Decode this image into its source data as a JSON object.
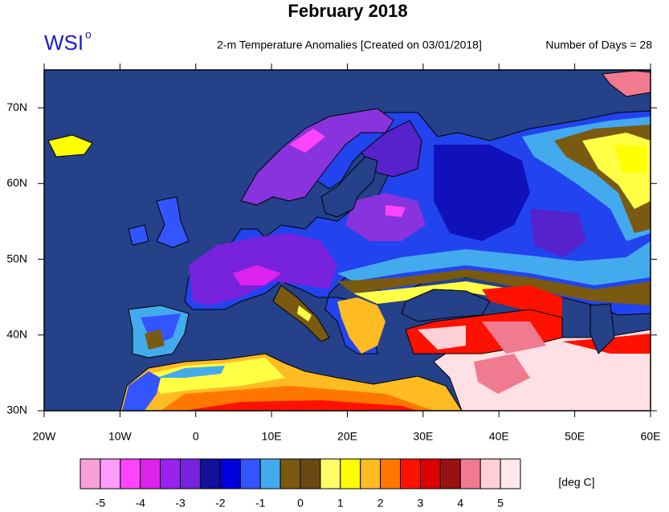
{
  "header": {
    "title": "February 2018",
    "logo": "WSI",
    "logo_sup": "o",
    "subtitle": "2-m Temperature Anomalies [Created on 03/01/2018]",
    "days": "Number of Days = 28"
  },
  "map": {
    "xlim": [
      -20,
      60
    ],
    "ylim": [
      30,
      75
    ],
    "xticks": [
      {
        "value": -20,
        "label": "20W"
      },
      {
        "value": -10,
        "label": "10W"
      },
      {
        "value": 0,
        "label": "0"
      },
      {
        "value": 10,
        "label": "10E"
      },
      {
        "value": 20,
        "label": "20E"
      },
      {
        "value": 30,
        "label": "30E"
      },
      {
        "value": 40,
        "label": "40E"
      },
      {
        "value": 50,
        "label": "50E"
      },
      {
        "value": 60,
        "label": "60E"
      }
    ],
    "yticks": [
      {
        "value": 30,
        "label": "30N"
      },
      {
        "value": 40,
        "label": "40N"
      },
      {
        "value": 50,
        "label": "50N"
      },
      {
        "value": 60,
        "label": "60N"
      },
      {
        "value": 70,
        "label": "70N"
      }
    ]
  },
  "colorbar": {
    "lim": [
      -5.5,
      5.5
    ],
    "ticks": [
      -5,
      -4,
      -3,
      -2,
      -1,
      0,
      1,
      2,
      3,
      4,
      5
    ],
    "unit": "[deg C]",
    "colors": [
      "#f8a0d8",
      "#ff9cff",
      "#ff44ff",
      "#dd22ee",
      "#9922ee",
      "#7722dd",
      "#111199",
      "#0000dd",
      "#3355ff",
      "#44aaee",
      "#7a5a10",
      "#6a4a10",
      "#ffff66",
      "#ffff00",
      "#ffbb22",
      "#ff7700",
      "#ff1100",
      "#dd0000",
      "#991111",
      "#f07a90",
      "#ffd0d8",
      "#ffe8ec"
    ]
  }
}
